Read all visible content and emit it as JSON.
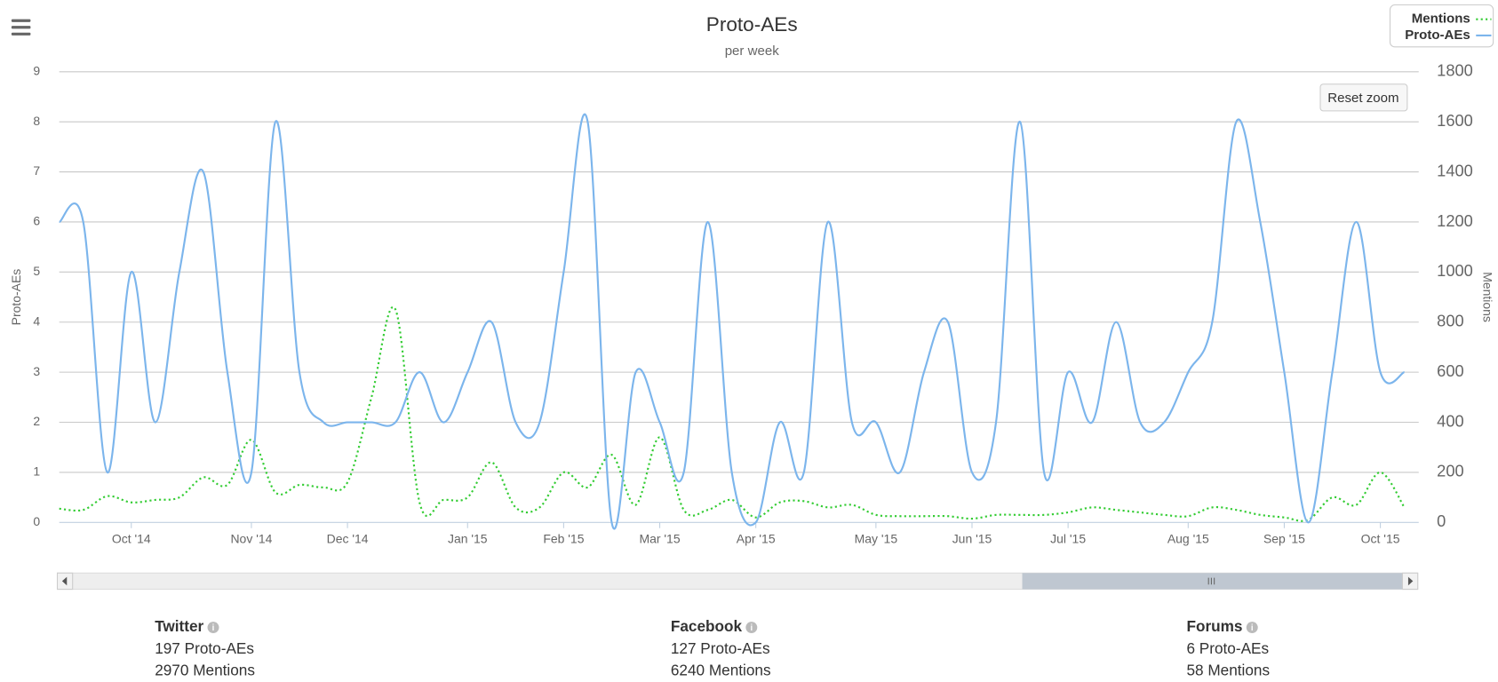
{
  "chart_data": {
    "type": "line",
    "title": "Proto-AEs",
    "subtitle": "per week",
    "categories": [
      null,
      null,
      null,
      "Oct '14",
      null,
      null,
      null,
      null,
      "Nov '14",
      null,
      null,
      null,
      "Dec '14",
      null,
      null,
      null,
      null,
      "Jan '15",
      null,
      null,
      null,
      "Feb '15",
      null,
      null,
      null,
      "Mar '15",
      null,
      null,
      null,
      "Apr '15",
      null,
      null,
      null,
      null,
      "May '15",
      null,
      null,
      null,
      "Jun '15",
      null,
      null,
      null,
      "Jul '15",
      null,
      null,
      null,
      null,
      "Aug '15",
      null,
      null,
      null,
      "Sep '15",
      null,
      null,
      null,
      "Oct '15",
      null
    ],
    "series": [
      {
        "name": "Mentions",
        "color": "#33cc33",
        "line_style": "dotted",
        "axis": "y2",
        "values": [
          55,
          50,
          105,
          80,
          90,
          100,
          180,
          150,
          330,
          120,
          150,
          140,
          160,
          500,
          850,
          80,
          90,
          100,
          240,
          60,
          60,
          200,
          140,
          270,
          70,
          340,
          50,
          50,
          90,
          20,
          80,
          85,
          60,
          70,
          30,
          25,
          25,
          25,
          15,
          30,
          30,
          30,
          40,
          60,
          50,
          40,
          30,
          25,
          60,
          50,
          30,
          20,
          10,
          100,
          70,
          200,
          60
        ]
      },
      {
        "name": "Proto-AEs",
        "color": "#7cb5ec",
        "line_style": "solid",
        "values": [
          6,
          6,
          1,
          5,
          2,
          5,
          7,
          3,
          1,
          8,
          3,
          2,
          2,
          2,
          2,
          3,
          2,
          3,
          4,
          2,
          2,
          5,
          8,
          0,
          3,
          2,
          1,
          6,
          1,
          0,
          2,
          1,
          6,
          2,
          2,
          1,
          3,
          4,
          1,
          2,
          8,
          1,
          3,
          2,
          4,
          2,
          2,
          3,
          4,
          8,
          6,
          3,
          0,
          3,
          6,
          3,
          3
        ]
      }
    ],
    "ylabel": "Proto-AEs",
    "y2label": "Mentions",
    "ylim": [
      0,
      9
    ],
    "yticks": [
      0,
      1,
      2,
      3,
      4,
      5,
      6,
      7,
      8,
      9
    ],
    "y2lim": [
      0,
      1800
    ],
    "y2ticks": [
      0,
      200,
      400,
      600,
      800,
      1000,
      1200,
      1400,
      1600,
      1800
    ],
    "grid": true,
    "legend": "upper right"
  },
  "ui": {
    "reset_zoom": "Reset zoom"
  },
  "stats": [
    {
      "name": "Twitter",
      "lines": [
        "197 Proto-AEs",
        "2970 Mentions"
      ]
    },
    {
      "name": "Facebook",
      "lines": [
        "127 Proto-AEs",
        "6240 Mentions"
      ]
    },
    {
      "name": "Forums",
      "lines": [
        "6 Proto-AEs",
        "58 Mentions"
      ]
    }
  ]
}
